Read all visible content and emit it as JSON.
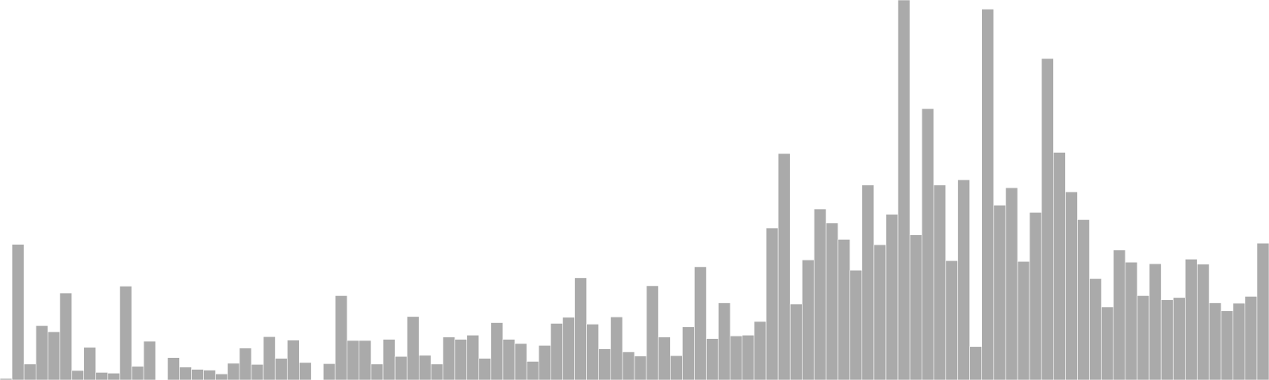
{
  "chart_data": {
    "type": "bar",
    "bar_color": "#aaaaaa",
    "bar_edge_color": "#ffffff",
    "ylim": [
      0,
      100
    ],
    "grid": false,
    "legend": "none",
    "values": [
      0.4,
      35.7,
      4.2,
      14.3,
      12.7,
      22.9,
      2.5,
      8.6,
      2.0,
      1.8,
      24.7,
      3.6,
      10.2,
      0,
      5.9,
      3.4,
      2.8,
      2.6,
      1.6,
      4.4,
      8.4,
      4.1,
      11.4,
      5.7,
      10.5,
      4.6,
      0,
      4.3,
      22.2,
      10.4,
      10.4,
      4.2,
      10.7,
      6.2,
      16.7,
      6.5,
      4.2,
      11.3,
      10.7,
      11.8,
      5.7,
      15.1,
      10.7,
      9.6,
      4.9,
      9.1,
      14.9,
      16.5,
      26.9,
      14.7,
      8.2,
      16.6,
      7.4,
      6.3,
      24.8,
      11.3,
      6.4,
      14.0,
      29.8,
      10.9,
      20.3,
      11.6,
      11.8,
      15.4,
      40.0,
      59.6,
      20.0,
      31.6,
      45.0,
      41.3,
      37.0,
      28.9,
      51.3,
      35.6,
      43.6,
      100.0,
      38.2,
      71.4,
      51.3,
      31.4,
      52.7,
      8.8,
      97.6,
      46.0,
      50.6,
      31.2,
      44.1,
      84.6,
      59.9,
      49.5,
      42.2,
      26.7,
      19.2,
      34.2,
      31.0,
      22.2,
      30.6,
      21.1,
      21.7,
      31.8,
      30.5,
      20.3,
      18.2,
      20.2,
      22.0,
      36.0
    ]
  }
}
